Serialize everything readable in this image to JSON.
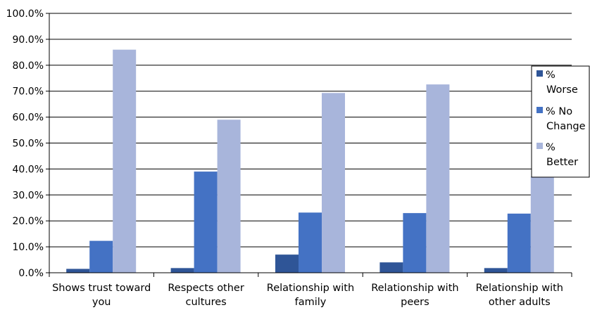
{
  "chart_data": {
    "type": "bar",
    "categories": [
      [
        "Shows trust toward",
        "you"
      ],
      [
        "Respects other",
        "cultures"
      ],
      [
        "Relationship with",
        "family"
      ],
      [
        "Relationship with",
        "peers"
      ],
      [
        "Relationship with",
        "other adults"
      ]
    ],
    "series": [
      {
        "name": [
          "%",
          "Worse"
        ],
        "color": "#2f5597",
        "values": [
          1.5,
          1.8,
          7.0,
          4.0,
          1.8
        ]
      },
      {
        "name": [
          "% No",
          "Change"
        ],
        "color": "#4472c4",
        "values": [
          12.3,
          39.0,
          23.2,
          23.0,
          22.8
        ]
      },
      {
        "name": [
          "%",
          "Better"
        ],
        "color": "#a8b5db",
        "values": [
          86.0,
          59.0,
          69.3,
          72.6,
          37.0
        ]
      }
    ],
    "y_ticks": [
      "0.0%",
      "10.0%",
      "20.0%",
      "30.0%",
      "40.0%",
      "50.0%",
      "60.0%",
      "70.0%",
      "80.0%",
      "90.0%",
      "100.0%"
    ],
    "ylim": [
      0,
      100
    ],
    "grid": true,
    "legend_position": "right"
  }
}
